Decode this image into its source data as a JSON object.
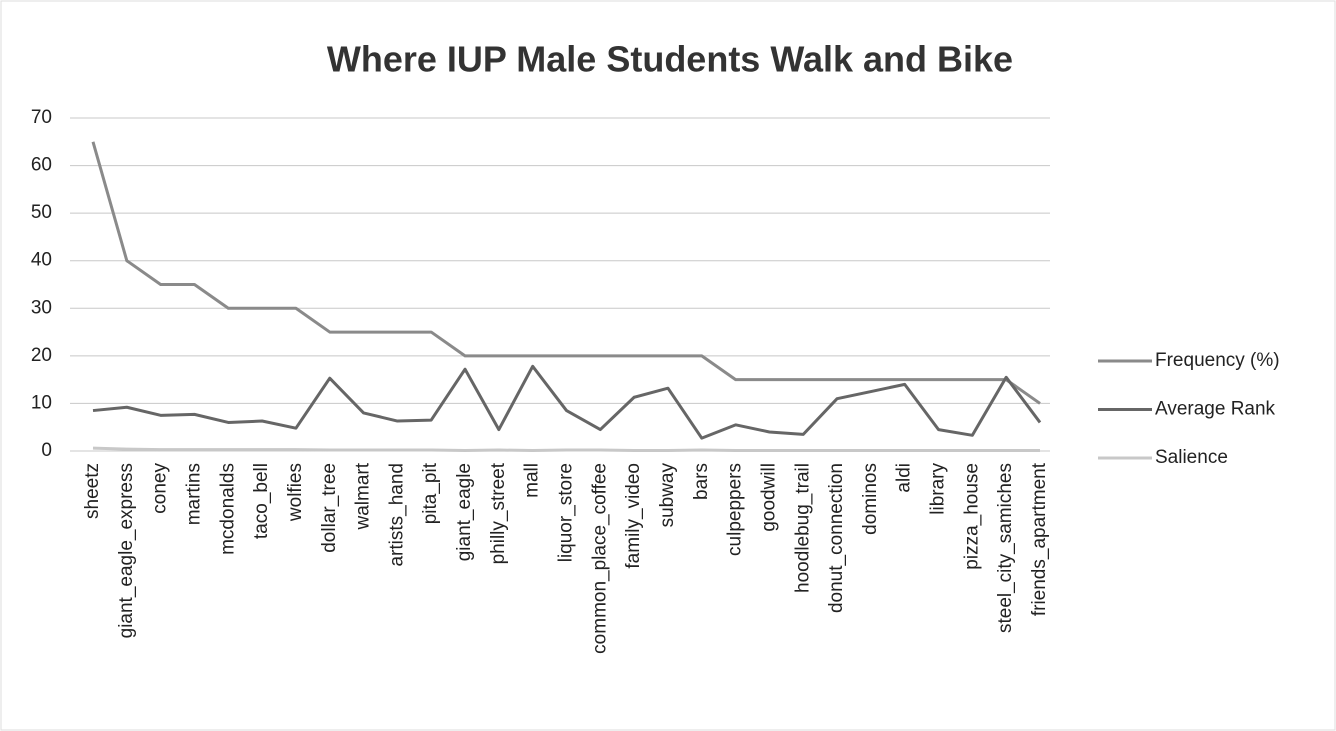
{
  "chart_data": {
    "type": "line",
    "title": "Where IUP Male Students Walk and Bike",
    "categories": [
      "sheetz",
      "giant_eagle_express",
      "coney",
      "martins",
      "mcdonalds",
      "taco_bell",
      "wolfies",
      "dollar_tree",
      "walmart",
      "artists_hand",
      "pita_pit",
      "giant_eagle",
      "philly_street",
      "mall",
      "liquor_store",
      "common_place_coffee",
      "family_video",
      "subway",
      "bars",
      "culpeppers",
      "goodwill",
      "hoodlebug_trail",
      "donut_connection",
      "dominos",
      "aldi",
      "library",
      "pizza_house",
      "steel_city_samiches",
      "friends_apartment"
    ],
    "series": [
      {
        "name": "Frequency (%)",
        "color": "#8a8a8a",
        "values": [
          65,
          40,
          35,
          35,
          30,
          30,
          30,
          25,
          25,
          25,
          25,
          20,
          20,
          20,
          20,
          20,
          20,
          20,
          20,
          15,
          15,
          15,
          15,
          15,
          15,
          15,
          15,
          15,
          10
        ]
      },
      {
        "name": "Average Rank",
        "color": "#666666",
        "values": [
          8.5,
          9.2,
          7.5,
          7.7,
          6,
          6.3,
          4.8,
          15.3,
          8,
          6.3,
          6.5,
          17.2,
          4.5,
          17.8,
          8.5,
          4.5,
          11.3,
          13.2,
          2.7,
          5.5,
          4,
          3.5,
          11,
          12.5,
          14,
          4.5,
          3.3,
          15.5,
          6
        ]
      },
      {
        "name": "Salience",
        "color": "#c8c8c8",
        "values": [
          0.6,
          0.4,
          0.3,
          0.3,
          0.3,
          0.3,
          0.3,
          0.2,
          0.2,
          0.2,
          0.2,
          0.1,
          0.2,
          0.1,
          0.2,
          0.2,
          0.1,
          0.1,
          0.2,
          0.1,
          0.1,
          0.1,
          0.1,
          0.1,
          0.1,
          0.1,
          0.1,
          0.1,
          0.1
        ]
      }
    ],
    "ylim": [
      0,
      70
    ],
    "yticks": [
      0,
      10,
      20,
      30,
      40,
      50,
      60,
      70
    ],
    "grid": true,
    "legend": "right"
  }
}
